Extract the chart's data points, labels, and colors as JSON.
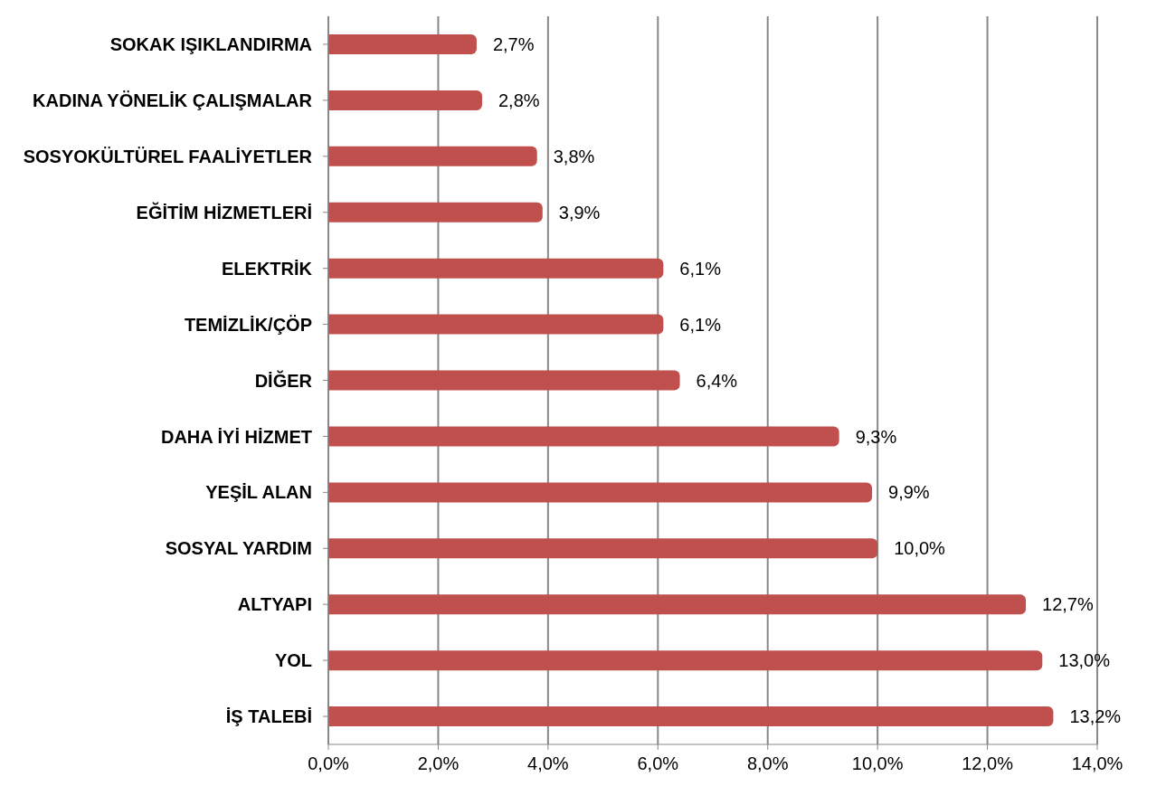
{
  "chart_data": {
    "type": "bar",
    "orientation": "horizontal",
    "categories": [
      "SOKAK IŞIKLANDIRMA",
      "KADINA YÖNELİK ÇALIŞMALAR",
      "SOSYOKÜLTÜREL FAALİYETLER",
      "EĞİTİM HİZMETLERİ",
      "ELEKTRİK",
      "TEMİZLİK/ÇÖP",
      "DİĞER",
      "DAHA İYİ HİZMET",
      "YEŞİL ALAN",
      "SOSYAL YARDIM",
      "ALTYAPI",
      "YOL",
      "İŞ TALEBİ"
    ],
    "values": [
      2.7,
      2.8,
      3.8,
      3.9,
      6.1,
      6.1,
      6.4,
      9.3,
      9.9,
      10.0,
      12.7,
      13.0,
      13.2
    ],
    "value_labels": [
      "2,7%",
      "2,8%",
      "3,8%",
      "3,9%",
      "6,1%",
      "6,1%",
      "6,4%",
      "9,3%",
      "9,9%",
      "10,0%",
      "12,7%",
      "13,0%",
      "13,2%"
    ],
    "color": "#c0504d",
    "xlim": [
      0,
      14
    ],
    "xticks": [
      {
        "value": 0,
        "label": "0,0%"
      },
      {
        "value": 2,
        "label": "2,0%"
      },
      {
        "value": 4,
        "label": "4,0%"
      },
      {
        "value": 6,
        "label": "6,0%"
      },
      {
        "value": 8,
        "label": "8,0%"
      },
      {
        "value": 10,
        "label": "10,0%"
      },
      {
        "value": 12,
        "label": "12,0%"
      },
      {
        "value": 14,
        "label": "14,0%"
      }
    ],
    "grid": "x"
  }
}
